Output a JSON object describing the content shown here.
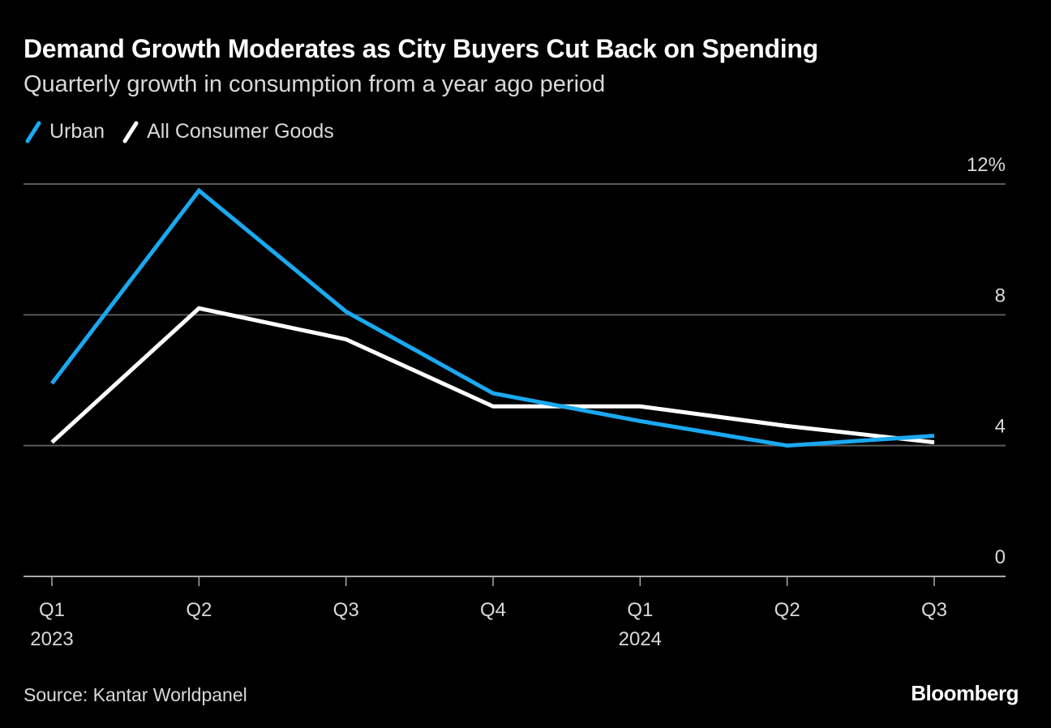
{
  "title": "Demand Growth Moderates as City Buyers Cut Back on Spending",
  "subtitle": "Quarterly growth in consumption from a year ago period",
  "source": "Source: Kantar Worldpanel",
  "brand": "Bloomberg",
  "colors": {
    "background": "#000000",
    "urban": "#1aa9f0",
    "all": "#ffffff",
    "grid": "#5a5a5a",
    "axis": "#aaaaaa",
    "text": "#d9d9d9"
  },
  "chart_data": {
    "type": "line",
    "title": "Demand Growth Moderates as City Buyers Cut Back on Spending",
    "subtitle": "Quarterly growth in consumption from a year ago period",
    "categories": [
      "Q1 2023",
      "Q2 2023",
      "Q3 2023",
      "Q4 2023",
      "Q1 2024",
      "Q2 2024",
      "Q3 2024"
    ],
    "x_tick_labels": [
      {
        "line1": "Q1",
        "line2": "2023"
      },
      {
        "line1": "Q2",
        "line2": ""
      },
      {
        "line1": "Q3",
        "line2": ""
      },
      {
        "line1": "Q4",
        "line2": ""
      },
      {
        "line1": "Q1",
        "line2": "2024"
      },
      {
        "line1": "Q2",
        "line2": ""
      },
      {
        "line1": "Q3",
        "line2": ""
      }
    ],
    "series": [
      {
        "name": "Urban",
        "color": "#1aa9f0",
        "values": [
          5.9,
          11.8,
          8.1,
          5.6,
          4.75,
          4.0,
          4.3
        ]
      },
      {
        "name": "All Consumer Goods",
        "color": "#ffffff",
        "values": [
          4.1,
          8.2,
          7.25,
          5.2,
          5.2,
          4.6,
          4.1
        ]
      }
    ],
    "y_ticks": [
      0,
      4,
      8,
      12
    ],
    "y_tick_labels": [
      "0",
      "4",
      "8",
      "12%"
    ],
    "ylim": [
      0,
      12
    ],
    "xlabel": "",
    "ylabel": "",
    "grid": true,
    "y_axis_position": "right",
    "legend_position": "top-left"
  }
}
